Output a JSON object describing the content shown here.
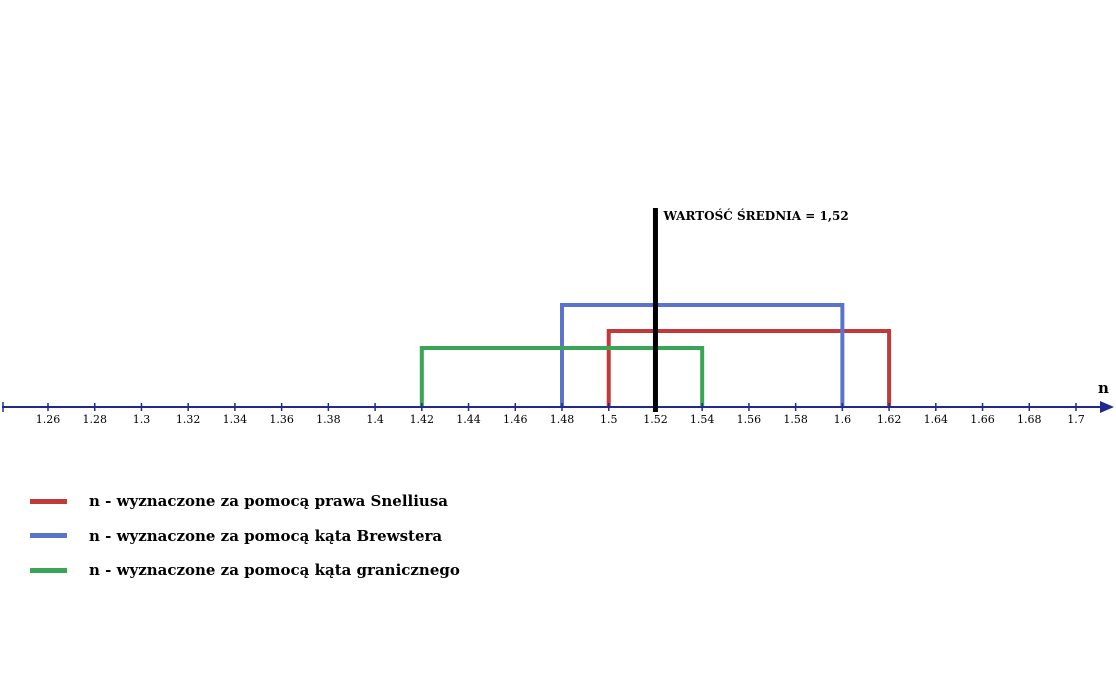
{
  "chart_data": {
    "type": "interval",
    "x_axis": {
      "label": "n",
      "min": 1.24,
      "max": 1.72,
      "ticks": [
        1.26,
        1.28,
        1.3,
        1.32,
        1.34,
        1.36,
        1.38,
        1.4,
        1.42,
        1.44,
        1.46,
        1.48,
        1.5,
        1.52,
        1.54,
        1.56,
        1.58,
        1.6,
        1.62,
        1.64,
        1.66,
        1.68,
        1.7
      ],
      "tick_labels": [
        "1.26",
        "1.28",
        "1.3",
        "1.32",
        "1.34",
        "1.36",
        "1.38",
        "1.4",
        "1.42",
        "1.44",
        "1.46",
        "1.48",
        "1.5",
        "1.52",
        "1.54",
        "1.56",
        "1.58",
        "1.6",
        "1.62",
        "1.64",
        "1.66",
        "1.68",
        "1.7"
      ]
    },
    "series": [
      {
        "name": "n - wyznaczone za pomocą prawa Snelliusa",
        "color": "#c03a3a",
        "start": 1.5,
        "end": 1.62
      },
      {
        "name": "n - wyznaczone za pomocą kąta Brewstera",
        "color": "#5a73cc",
        "start": 1.48,
        "end": 1.6
      },
      {
        "name": "n - wyznaczone za pomocą kąta granicznego",
        "color": "#3aa655",
        "start": 1.42,
        "end": 1.54
      }
    ],
    "mean": {
      "value": 1.52,
      "label": "WARTOŚĆ ŚREDNIA = 1,52",
      "color": "#000000"
    },
    "axis_color": "#1f2a8c"
  }
}
